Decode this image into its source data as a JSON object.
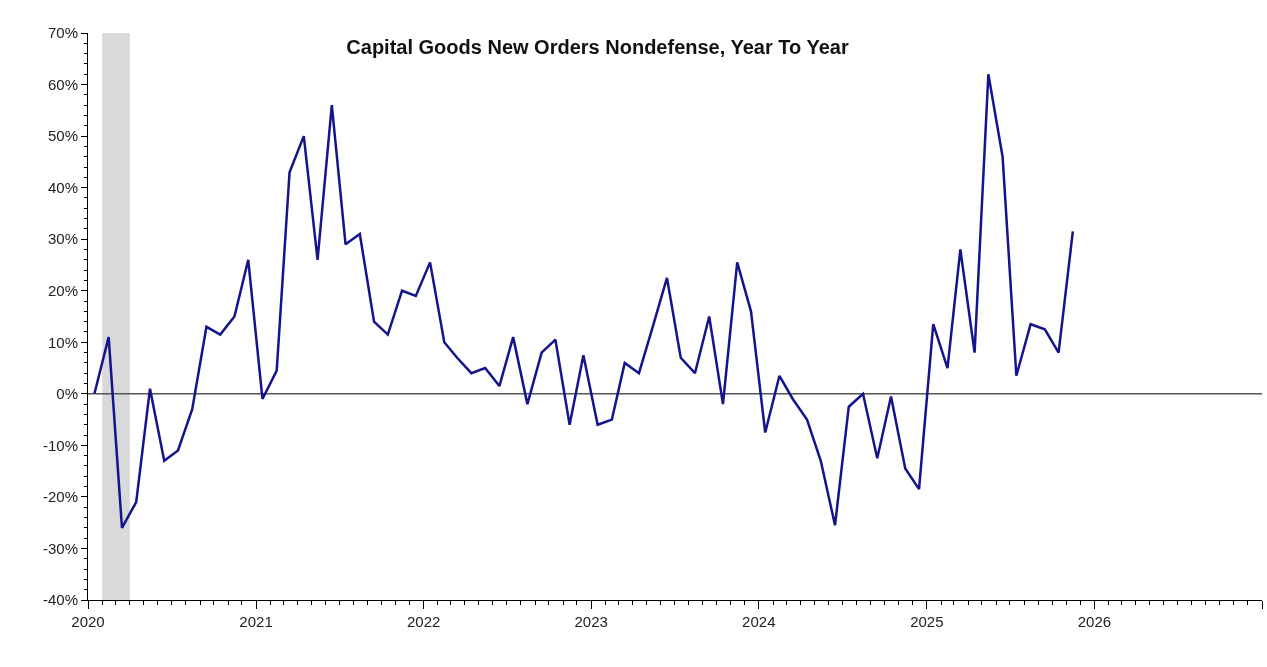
{
  "chart_data": {
    "type": "line",
    "title": "Capital Goods New Orders Nondefense, Year To Year",
    "x": [
      "2020-01-15",
      "2020-02-15",
      "2020-03-15",
      "2020-04-15",
      "2020-05-15",
      "2020-06-15",
      "2020-07-15",
      "2020-08-15",
      "2020-09-15",
      "2020-10-15",
      "2020-11-15",
      "2020-12-15",
      "2021-01-15",
      "2021-02-15",
      "2021-03-15",
      "2021-04-15",
      "2021-05-15",
      "2021-06-15",
      "2021-07-15",
      "2021-08-15",
      "2021-09-15",
      "2021-10-15",
      "2021-11-15",
      "2021-12-15",
      "2022-01-15",
      "2022-02-15",
      "2022-03-15",
      "2022-04-15",
      "2022-05-15",
      "2022-06-15",
      "2022-07-15",
      "2022-08-15",
      "2022-09-15",
      "2022-10-15",
      "2022-11-15",
      "2022-12-15",
      "2023-01-15",
      "2023-02-15",
      "2023-03-15",
      "2023-04-15",
      "2023-05-15",
      "2023-06-15",
      "2023-07-15",
      "2023-08-15",
      "2023-09-15",
      "2023-10-15",
      "2023-11-15",
      "2023-12-15",
      "2024-01-15",
      "2024-02-15",
      "2024-03-15",
      "2024-04-15",
      "2024-05-15",
      "2024-06-15",
      "2024-07-15",
      "2024-08-15",
      "2024-09-15",
      "2024-10-15",
      "2024-11-15",
      "2024-12-15",
      "2025-01-15",
      "2025-02-15",
      "2025-03-15",
      "2025-04-15",
      "2025-05-15",
      "2025-06-15",
      "2025-07-15",
      "2025-08-15",
      "2025-09-15",
      "2025-10-15",
      "2025-11-15"
    ],
    "series": [
      {
        "color": "#14148c",
        "values": [
          0,
          11,
          -26,
          -21,
          1,
          -13,
          -11,
          -3,
          13,
          11.5,
          15,
          26,
          -1,
          4.5,
          43,
          50,
          26,
          56,
          29,
          31,
          14,
          11.5,
          20,
          19,
          25.5,
          10,
          7,
          4,
          5,
          1.5,
          11,
          -2,
          8,
          10.5,
          -6,
          7.5,
          -6,
          -5,
          6,
          4,
          13,
          22.5,
          7,
          4,
          15,
          -2,
          25.5,
          16,
          -7.5,
          3.5,
          -1,
          -5,
          -13,
          -25.5,
          -2.5,
          0,
          -12.5,
          -0.5,
          -14.5,
          -18.5,
          13.5,
          5,
          28,
          8,
          62,
          46,
          3.5,
          13.5,
          12.5,
          8,
          31.5
        ]
      }
    ],
    "xlim": [
      "2020-01-01",
      "2027-01-01"
    ],
    "xticks": [
      {
        "value": "2020-01-01",
        "label": "2020"
      },
      {
        "value": "2021-01-01",
        "label": "2021"
      },
      {
        "value": "2022-01-01",
        "label": "2022"
      },
      {
        "value": "2023-01-01",
        "label": "2023"
      },
      {
        "value": "2024-01-01",
        "label": "2024"
      },
      {
        "value": "2025-01-01",
        "label": "2025"
      },
      {
        "value": "2026-01-01",
        "label": "2026"
      },
      {
        "value": "2027-01-01",
        "label": null
      }
    ],
    "ylim": [
      -40,
      70
    ],
    "yticks": [
      {
        "value": -40,
        "label": "-40%"
      },
      {
        "value": -30,
        "label": "-30%"
      },
      {
        "value": -20,
        "label": "-20%"
      },
      {
        "value": -10,
        "label": "-10%"
      },
      {
        "value": 0,
        "label": "0%"
      },
      {
        "value": 10,
        "label": "10%"
      },
      {
        "value": 20,
        "label": "20%"
      },
      {
        "value": 30,
        "label": "30%"
      },
      {
        "value": 40,
        "label": "40%"
      },
      {
        "value": 50,
        "label": "50%"
      },
      {
        "value": 60,
        "label": "60%"
      },
      {
        "value": 70,
        "label": "70%"
      }
    ],
    "ref_lines": [
      {
        "axis": "y",
        "value": 0,
        "color": "#555555"
      }
    ],
    "bands": [
      {
        "axis": "x",
        "from": "2020-02-01",
        "to": "2020-04-01",
        "color": "#d9d9d9"
      }
    ],
    "marker": "none",
    "line_style": "solid"
  }
}
